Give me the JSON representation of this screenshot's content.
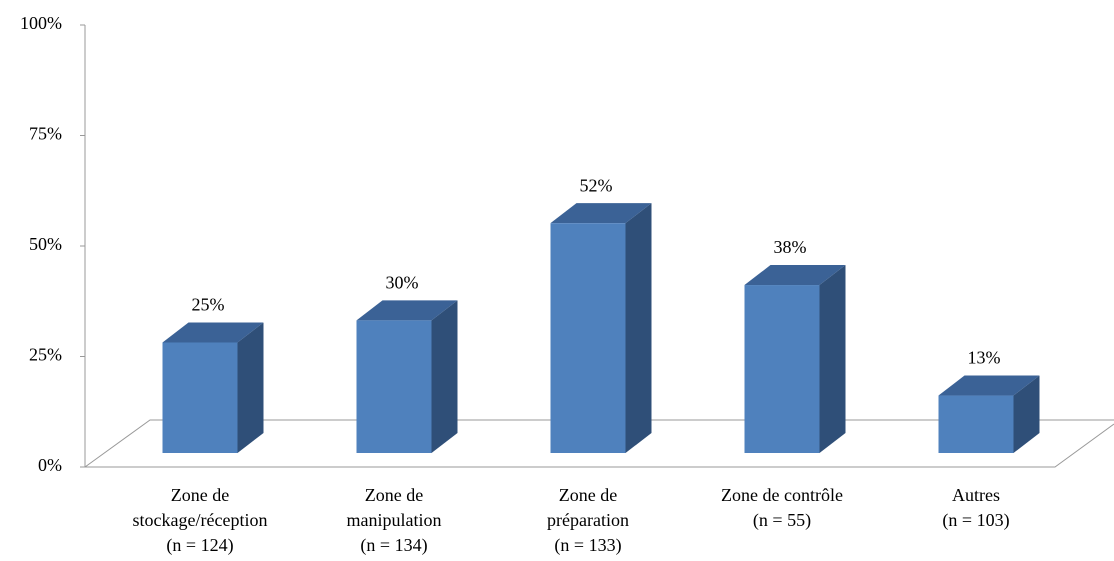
{
  "chart_data": {
    "type": "bar3d",
    "categories": [
      [
        "Zone de",
        "stockage/réception",
        "(n = 124)"
      ],
      [
        "Zone de",
        "manipulation",
        "(n = 134)"
      ],
      [
        "Zone de",
        "préparation",
        "(n = 133)"
      ],
      [
        "Zone de contrôle",
        "(n = 55)"
      ],
      [
        "Autres",
        "(n = 103)"
      ]
    ],
    "values": [
      25,
      30,
      52,
      38,
      13
    ],
    "value_labels": [
      "25%",
      "30%",
      "52%",
      "38%",
      "13%"
    ],
    "color": "#4f81bd",
    "ylim": [
      0,
      100
    ],
    "yticks": [
      {
        "value": 0,
        "label": "0%"
      },
      {
        "value": 25,
        "label": "25%"
      },
      {
        "value": 50,
        "label": "50%"
      },
      {
        "value": 75,
        "label": "75%"
      },
      {
        "value": 100,
        "label": "100%"
      }
    ]
  }
}
